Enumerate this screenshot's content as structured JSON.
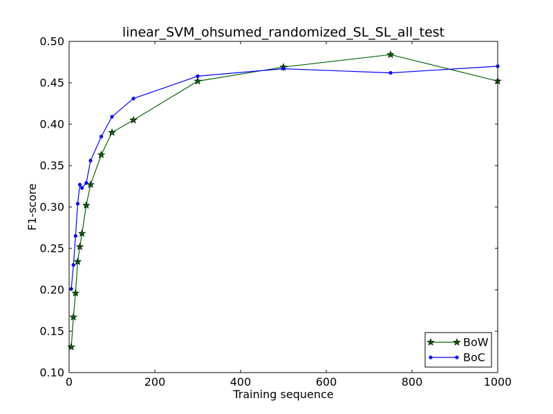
{
  "chart_data": {
    "type": "line",
    "title": "linear_SVM_ohsumed_randomized_SL_SL_all_test",
    "xlabel": "Training sequence",
    "ylabel": "F1-score",
    "xlim": [
      0,
      1000
    ],
    "ylim": [
      0.1,
      0.5
    ],
    "x_ticks": [
      0,
      200,
      400,
      600,
      800,
      1000
    ],
    "y_ticks": [
      0.1,
      0.15,
      0.2,
      0.25,
      0.3,
      0.35,
      0.4,
      0.45,
      0.5
    ],
    "x_tick_labels": [
      "0",
      "200",
      "400",
      "600",
      "800",
      "1000"
    ],
    "y_tick_labels": [
      "0.10",
      "0.15",
      "0.20",
      "0.25",
      "0.30",
      "0.35",
      "0.40",
      "0.45",
      "0.50"
    ],
    "grid": false,
    "legend_position": "lower-right",
    "series": [
      {
        "name": "BoW",
        "color": "#006400",
        "marker": "star",
        "points": [
          [
            5,
            0.131
          ],
          [
            10,
            0.167
          ],
          [
            15,
            0.196
          ],
          [
            20,
            0.234
          ],
          [
            25,
            0.252
          ],
          [
            30,
            0.268
          ],
          [
            40,
            0.302
          ],
          [
            50,
            0.327
          ],
          [
            75,
            0.363
          ],
          [
            100,
            0.39
          ],
          [
            150,
            0.405
          ],
          [
            300,
            0.452
          ],
          [
            500,
            0.469
          ],
          [
            750,
            0.484
          ],
          [
            1000,
            0.452
          ]
        ]
      },
      {
        "name": "BoC",
        "color": "#0000ff",
        "marker": "dot",
        "points": [
          [
            5,
            0.201
          ],
          [
            10,
            0.23
          ],
          [
            15,
            0.265
          ],
          [
            20,
            0.304
          ],
          [
            25,
            0.327
          ],
          [
            30,
            0.323
          ],
          [
            40,
            0.329
          ],
          [
            50,
            0.356
          ],
          [
            75,
            0.385
          ],
          [
            100,
            0.409
          ],
          [
            150,
            0.431
          ],
          [
            300,
            0.458
          ],
          [
            500,
            0.467
          ],
          [
            750,
            0.462
          ],
          [
            1000,
            0.47
          ]
        ]
      }
    ]
  }
}
